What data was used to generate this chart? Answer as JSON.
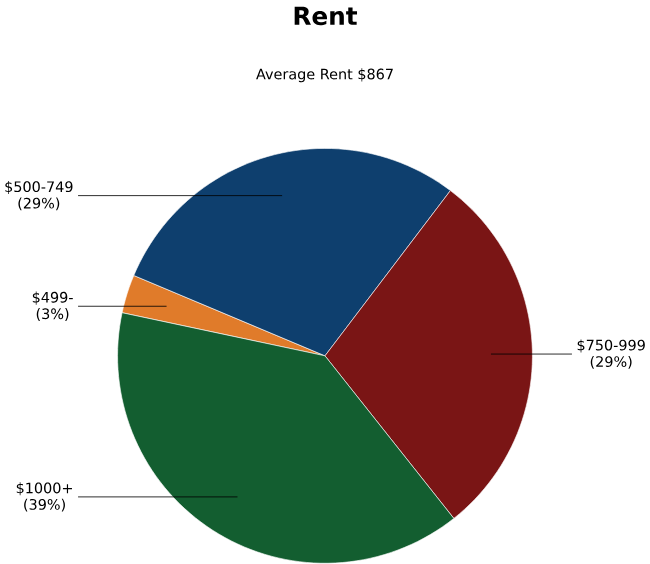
{
  "chart_data": {
    "type": "pie",
    "title": "Rent",
    "subtitle": "Average Rent  $867",
    "categories": [
      "$499-",
      "$500-749",
      "$750-999",
      "$1000+"
    ],
    "values": [
      3,
      29,
      29,
      39
    ],
    "value_labels": [
      "(3%)",
      "(29%)",
      "(29%)",
      "(39%)"
    ],
    "colors": [
      "#e07b2a",
      "#0e3f6e",
      "#7a1515",
      "#135e30"
    ]
  }
}
